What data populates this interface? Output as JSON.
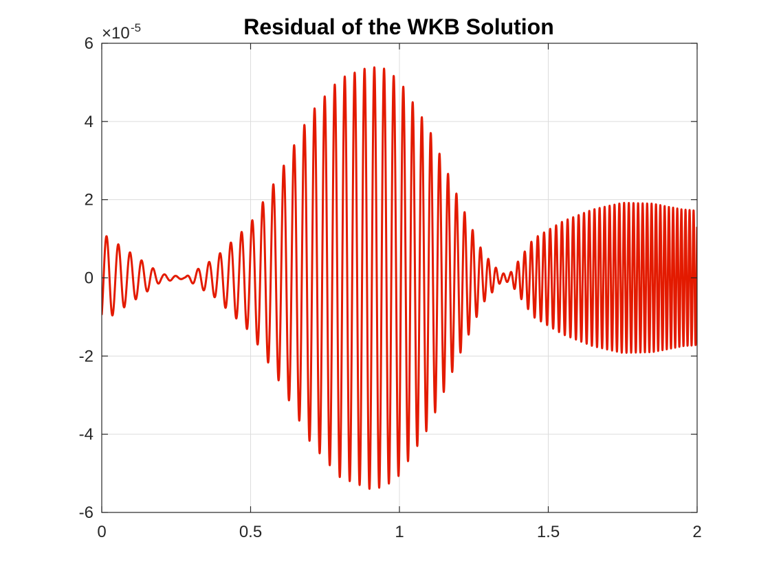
{
  "chart_data": {
    "type": "line",
    "title": "Residual of the WKB Solution",
    "xlabel": "",
    "ylabel": "",
    "y_exponent_label": "×10",
    "y_exponent_power": "-5",
    "y_scale_factor": 1e-05,
    "xlim": [
      0,
      2
    ],
    "ylim": [
      -6,
      6
    ],
    "x_ticks": [
      0,
      0.5,
      1,
      1.5,
      2
    ],
    "x_tick_labels": [
      "0",
      "0.5",
      "1",
      "1.5",
      "2"
    ],
    "y_ticks": [
      -6,
      -4,
      -2,
      0,
      2,
      4,
      6
    ],
    "y_tick_labels": [
      "-6",
      "-4",
      "-2",
      "0",
      "2",
      "4",
      "6"
    ],
    "grid": true,
    "box": true,
    "series": [
      {
        "color": "#e31a00",
        "line_width": 3,
        "x": [
          0,
          0.2,
          0.28,
          0.38,
          0.5,
          0.6,
          0.7,
          0.8,
          0.9,
          0.95,
          1.0,
          1.1,
          1.2,
          1.28,
          1.34,
          1.37,
          1.45,
          1.55,
          1.65,
          1.75,
          1.85,
          1.95,
          2.0
        ],
        "y_envelope": [
          1.15,
          0.1,
          0.02,
          0.5,
          1.4,
          2.7,
          4.2,
          5.1,
          5.4,
          5.35,
          5.05,
          3.8,
          2.0,
          0.65,
          0.12,
          0.1,
          1.0,
          1.45,
          1.75,
          1.92,
          1.9,
          1.75,
          1.72
        ],
        "cycles_per_unit": [
          [
            0,
            25
          ],
          [
            0.5,
            28
          ],
          [
            1.0,
            31
          ],
          [
            1.35,
            40
          ],
          [
            1.6,
            55
          ],
          [
            2.0,
            75
          ]
        ]
      }
    ]
  }
}
